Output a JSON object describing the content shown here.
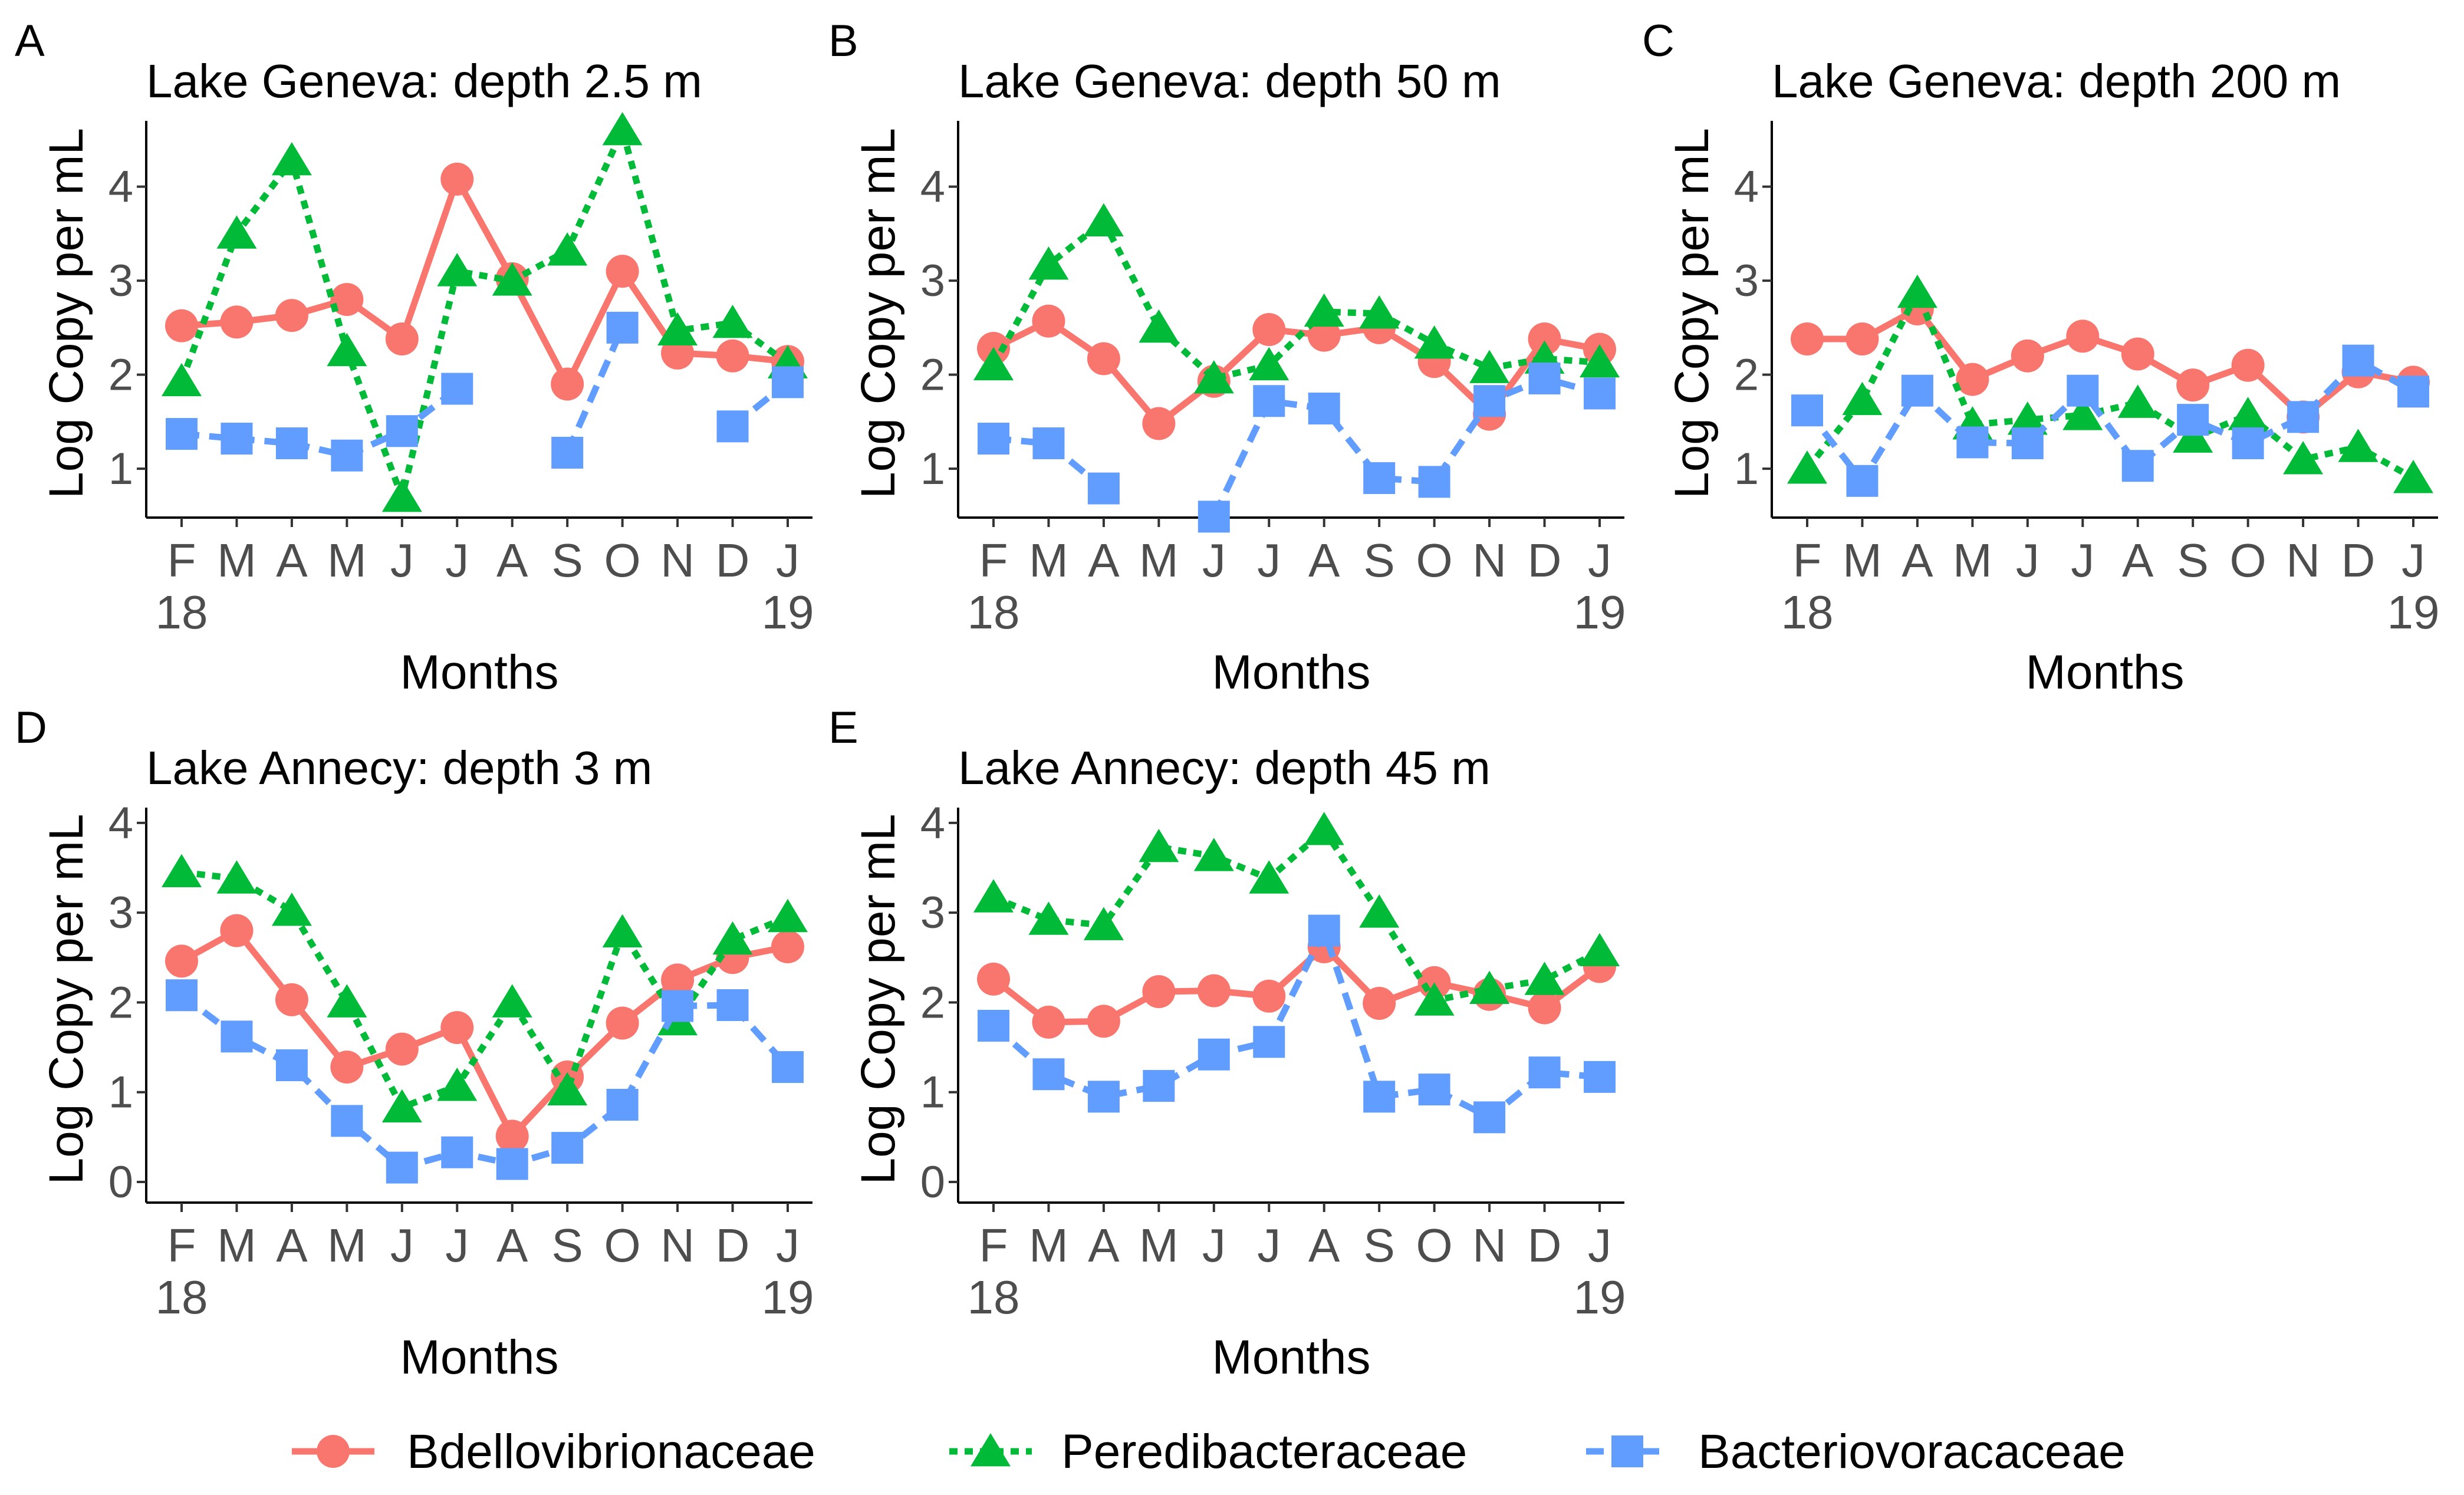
{
  "chart_data": [
    {
      "panel": "A",
      "type": "line",
      "title": "Lake Geneva: depth 2.5 m",
      "xlabel": "Months",
      "ylabel": "Log Copy per mL",
      "categories": [
        "F",
        "M",
        "A",
        "M",
        "J",
        "J",
        "A",
        "S",
        "O",
        "N",
        "D",
        "J"
      ],
      "year_labels": [
        "18",
        "19"
      ],
      "ylim": [
        0.48,
        4.7
      ],
      "yticks": [
        1,
        2,
        3,
        4
      ],
      "series": [
        {
          "name": "Bdellovibrionaceae",
          "values": [
            2.52,
            2.56,
            2.63,
            2.8,
            2.38,
            4.08,
            3.02,
            1.9,
            3.1,
            2.23,
            2.2,
            2.14
          ]
        },
        {
          "name": "Peredibacteraceae",
          "values": [
            1.93,
            3.5,
            4.28,
            2.25,
            0.7,
            3.1,
            3.0,
            3.32,
            4.6,
            2.47,
            2.55,
            2.12
          ]
        },
        {
          "name": "Bacteriovoracaceae",
          "values": [
            1.37,
            1.32,
            1.27,
            1.14,
            1.4,
            1.85,
            null,
            1.17,
            2.5,
            null,
            1.45,
            1.92
          ]
        }
      ]
    },
    {
      "panel": "B",
      "type": "line",
      "title": "Lake Geneva: depth 50 m",
      "xlabel": "Months",
      "ylabel": "Log Copy per mL",
      "categories": [
        "F",
        "M",
        "A",
        "M",
        "J",
        "J",
        "A",
        "S",
        "O",
        "N",
        "D",
        "J"
      ],
      "year_labels": [
        "18",
        "19"
      ],
      "ylim": [
        0.48,
        4.7
      ],
      "yticks": [
        1,
        2,
        3,
        4
      ],
      "series": [
        {
          "name": "Bdellovibrionaceae",
          "values": [
            2.28,
            2.57,
            2.17,
            1.48,
            1.93,
            2.48,
            2.42,
            2.5,
            2.14,
            1.58,
            2.38,
            2.27
          ]
        },
        {
          "name": "Peredibacteraceae",
          "values": [
            2.1,
            3.17,
            3.63,
            2.5,
            1.96,
            2.1,
            2.67,
            2.65,
            2.33,
            2.07,
            2.17,
            2.13
          ]
        },
        {
          "name": "Bacteriovoracaceae",
          "values": [
            1.32,
            1.27,
            0.79,
            null,
            0.49,
            1.72,
            1.64,
            0.9,
            0.86,
            1.72,
            1.96,
            1.8
          ]
        }
      ]
    },
    {
      "panel": "C",
      "type": "line",
      "title": "Lake Geneva: depth 200 m",
      "xlabel": "Months",
      "ylabel": "Log Copy per mL",
      "categories": [
        "F",
        "M",
        "A",
        "M",
        "J",
        "J",
        "A",
        "S",
        "O",
        "N",
        "D",
        "J"
      ],
      "year_labels": [
        "18",
        "19"
      ],
      "ylim": [
        0.48,
        4.7
      ],
      "yticks": [
        1,
        2,
        3,
        4
      ],
      "series": [
        {
          "name": "Bdellovibrionaceae",
          "values": [
            2.38,
            2.38,
            2.7,
            1.95,
            2.2,
            2.41,
            2.22,
            1.89,
            2.1,
            1.55,
            2.03,
            1.92
          ]
        },
        {
          "name": "Peredibacteraceae",
          "values": [
            1.0,
            1.73,
            2.87,
            1.47,
            1.52,
            1.57,
            1.7,
            1.33,
            1.57,
            1.1,
            1.23,
            0.9
          ]
        },
        {
          "name": "Bacteriovoracaceae",
          "values": [
            1.62,
            0.87,
            1.83,
            1.28,
            1.27,
            1.83,
            1.03,
            1.52,
            1.27,
            1.55,
            2.15,
            1.82
          ]
        }
      ]
    },
    {
      "panel": "D",
      "type": "line",
      "title": "Lake Annecy: depth 3 m",
      "xlabel": "Months",
      "ylabel": "Log Copy per mL",
      "categories": [
        "F",
        "M",
        "A",
        "M",
        "J",
        "J",
        "A",
        "S",
        "O",
        "N",
        "D",
        "J"
      ],
      "year_labels": [
        "18",
        "19"
      ],
      "ylim": [
        -0.23,
        4.17
      ],
      "yticks": [
        0,
        1,
        2,
        3,
        4
      ],
      "series": [
        {
          "name": "Bdellovibrionaceae",
          "values": [
            2.46,
            2.8,
            2.03,
            1.28,
            1.48,
            1.72,
            0.51,
            1.17,
            1.77,
            2.25,
            2.5,
            2.62
          ]
        },
        {
          "name": "Peredibacteraceae",
          "values": [
            3.45,
            3.38,
            3.02,
            2.0,
            0.83,
            1.07,
            2.0,
            1.02,
            2.78,
            1.8,
            2.7,
            2.95
          ]
        },
        {
          "name": "Bacteriovoracaceae",
          "values": [
            2.08,
            1.62,
            1.3,
            0.68,
            0.16,
            0.33,
            0.2,
            0.38,
            0.86,
            1.96,
            1.97,
            1.28
          ]
        }
      ]
    },
    {
      "panel": "E",
      "type": "line",
      "title": "Lake Annecy: depth 45 m",
      "xlabel": "Months",
      "ylabel": "Log Copy per mL",
      "categories": [
        "F",
        "M",
        "A",
        "M",
        "J",
        "J",
        "A",
        "S",
        "O",
        "N",
        "D",
        "J"
      ],
      "year_labels": [
        "18",
        "19"
      ],
      "ylim": [
        -0.23,
        4.17
      ],
      "yticks": [
        0,
        1,
        2,
        3,
        4
      ],
      "series": [
        {
          "name": "Bdellovibrionaceae",
          "values": [
            2.26,
            1.78,
            1.79,
            2.12,
            2.13,
            2.07,
            2.62,
            1.99,
            2.22,
            2.09,
            1.94,
            2.4
          ]
        },
        {
          "name": "Peredibacteraceae",
          "values": [
            3.17,
            2.92,
            2.86,
            3.73,
            3.63,
            3.38,
            3.92,
            3.0,
            2.02,
            2.15,
            2.25,
            2.57
          ]
        },
        {
          "name": "Bacteriovoracaceae",
          "values": [
            1.74,
            1.2,
            0.95,
            1.07,
            1.42,
            1.56,
            2.8,
            0.95,
            1.03,
            0.72,
            1.22,
            1.17
          ]
        }
      ]
    }
  ],
  "legend": {
    "placement": "bottom",
    "items": [
      {
        "name": "Bdellovibrionaceae",
        "color": "#F8766D",
        "marker": "circle",
        "line": "solid"
      },
      {
        "name": "Peredibacteraceae",
        "color": "#00BA38",
        "marker": "triangle",
        "line": "dotted"
      },
      {
        "name": "Bacteriovoracaceae",
        "color": "#619CFF",
        "marker": "square",
        "line": "dashed"
      }
    ]
  }
}
